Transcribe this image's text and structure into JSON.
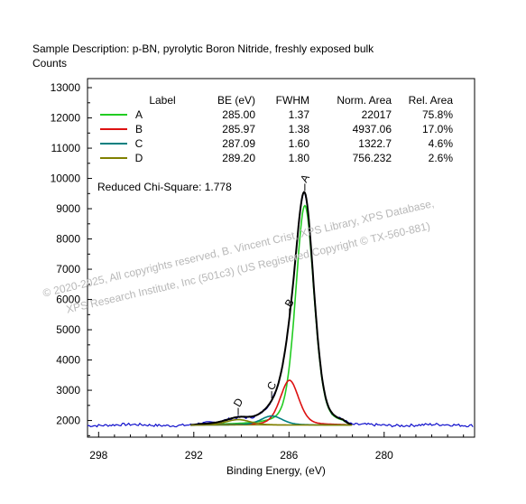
{
  "header": {
    "sample": "Sample Description:  p-BN, pyrolytic Boron Nitride, freshly exposed bulk",
    "ylabel": "Counts"
  },
  "legend": {
    "headers": [
      "Label",
      "BE (eV)",
      "FWHM",
      "Norm. Area",
      "Rel. Area"
    ],
    "rows": [
      {
        "label": "A",
        "be": "285.00",
        "fwhm": "1.37",
        "area": "22017",
        "rel": "75.8%",
        "color": "#22cc22"
      },
      {
        "label": "B",
        "be": "285.97",
        "fwhm": "1.38",
        "area": "4937.06",
        "rel": "17.0%",
        "color": "#dd1111"
      },
      {
        "label": "C",
        "be": "287.09",
        "fwhm": "1.60",
        "area": "1322.7",
        "rel": "4.6%",
        "color": "#008080"
      },
      {
        "label": "D",
        "be": "289.20",
        "fwhm": "1.80",
        "area": "756.232",
        "rel": "2.6%",
        "color": "#808000"
      }
    ]
  },
  "chi_square": "Reduced Chi-Square: 1.778",
  "watermark": {
    "line1": "© 2020-2025,  All copyrights reserved,  B. Vincent Crist,  XPS Library, XPS Database,",
    "line2": "XPS Research Institute, Inc (501c3)   (US Registered Copyright © TX-560-881)"
  },
  "chart_data": {
    "type": "line",
    "xlabel": "Binding Energy, (eV)",
    "ylabel": "Counts",
    "xlim": [
      298.7,
      274.3
    ],
    "ylim": [
      1450,
      13300
    ],
    "x_reversed": true,
    "x_ticks": [
      298,
      292,
      286,
      280
    ],
    "y_ticks": [
      2000,
      3000,
      4000,
      5000,
      6000,
      7000,
      8000,
      9000,
      10000,
      11000,
      12000,
      13000
    ],
    "background": 1850,
    "peaks": [
      {
        "label": "A",
        "center": 285.0,
        "fwhm": 1.37,
        "height": 7250,
        "color": "#22cc22"
      },
      {
        "label": "B",
        "center": 285.97,
        "fwhm": 1.38,
        "height": 1480,
        "color": "#dd1111"
      },
      {
        "label": "C",
        "center": 287.09,
        "fwhm": 1.6,
        "height": 300,
        "color": "#008080"
      },
      {
        "label": "D",
        "center": 289.2,
        "fwhm": 1.8,
        "height": 180,
        "color": "#808000"
      }
    ],
    "grid": false
  }
}
